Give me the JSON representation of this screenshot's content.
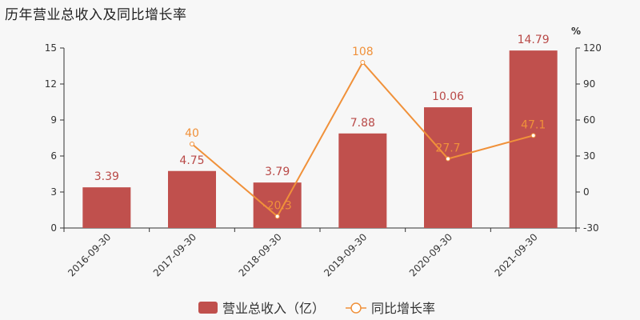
{
  "title": "历年营业总收入及同比增长率",
  "chart_data": {
    "type": "bar",
    "categories": [
      "2016-09-30",
      "2017-09-30",
      "2018-09-30",
      "2019-09-30",
      "2020-09-30",
      "2021-09-30"
    ],
    "series": [
      {
        "name": "营业总收入（亿）",
        "type": "bar",
        "axis": "left",
        "values": [
          3.39,
          4.75,
          3.79,
          7.88,
          10.06,
          14.79
        ],
        "labels": [
          "3.39",
          "4.75",
          "3.79",
          "7.88",
          "10.06",
          "14.79"
        ],
        "color": "#c0504d"
      },
      {
        "name": "同比增长率",
        "type": "line",
        "axis": "right",
        "values": [
          null,
          40,
          -20.3,
          108,
          27.7,
          47.1
        ],
        "labels": [
          "",
          "40",
          "-20.3",
          "108",
          "27.7",
          "47.1"
        ],
        "color": "#f0913a"
      }
    ],
    "y_left": {
      "min": 0,
      "max": 15,
      "ticks": [
        "0",
        "3",
        "6",
        "9",
        "12",
        "15"
      ]
    },
    "y_right": {
      "min": -30,
      "max": 120,
      "unit": "%",
      "ticks": [
        "-30",
        "0",
        "30",
        "60",
        "90",
        "120"
      ]
    },
    "grid": false,
    "legend": "bottom-center"
  }
}
